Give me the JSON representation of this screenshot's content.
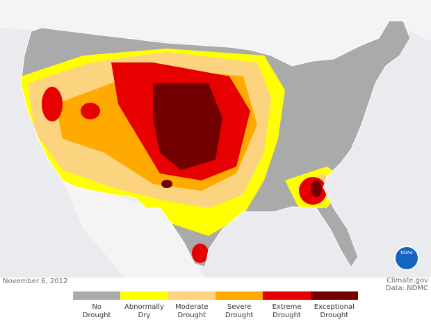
{
  "map": {
    "date": "November 6, 2012",
    "credit": "Climate.gov",
    "source": "Data: NDMC",
    "logo": "NOAA",
    "legend": [
      {
        "label": "No\nDrought",
        "color": "#aaaaaa"
      },
      {
        "label": "Abnormally\nDry",
        "color": "#ffff00"
      },
      {
        "label": "Moderate\nDrought",
        "color": "#fcd37f"
      },
      {
        "label": "Severe\nDrought",
        "color": "#ffaa00"
      },
      {
        "label": "Extreme\nDrought",
        "color": "#e60000"
      },
      {
        "label": "Exceptional\nDrought",
        "color": "#730000"
      }
    ]
  }
}
